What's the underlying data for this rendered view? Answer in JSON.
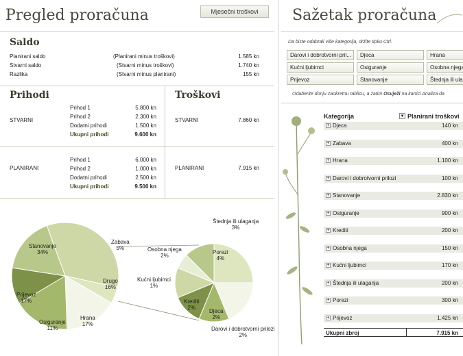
{
  "left": {
    "title": "Pregled proračuna",
    "button_label": "Mjesečni troškovi",
    "saldo": {
      "title": "Saldo",
      "rows": [
        {
          "label": "Planirani saldo",
          "desc": "(Planirani minus troškovi)",
          "value": "1.585 kn"
        },
        {
          "label": "Stvarni saldo",
          "desc": "(Stvarni minus troškovi)",
          "value": "1.740 kn"
        },
        {
          "label": "Razlika",
          "desc": "(Stvarni minus planirani)",
          "value": "155 kn"
        }
      ]
    },
    "prihodi": {
      "title": "Prihodi",
      "stvarni_label": "STVARNI",
      "stvarni_rows": [
        {
          "label": "Prihod 1",
          "value": "5.800 kn"
        },
        {
          "label": "Prihod 2",
          "value": "2.300 kn"
        },
        {
          "label": "Dodatni prihodi",
          "value": "1.500 kn"
        },
        {
          "label": "Ukupni prihodi",
          "value": "9.600 kn"
        }
      ],
      "planirani_label": "PLANIRANI",
      "planirani_rows": [
        {
          "label": "Prihod 1",
          "value": "6.000 kn"
        },
        {
          "label": "Prihod 2",
          "value": "1.000 kn"
        },
        {
          "label": "Dodatni prihodi",
          "value": "2.500 kn"
        },
        {
          "label": "Ukupni prihodi",
          "value": "9.500 kn"
        }
      ]
    },
    "troskovi": {
      "title": "Troškovi",
      "stvarni_label": "STVARNI",
      "stvarni_value": "7.860 kn",
      "planirani_label": "PLANIRANI",
      "planirani_value": "7.915 kn"
    }
  },
  "chart_data": {
    "type": "pie",
    "main": [
      {
        "name": "Stanovanje",
        "value": 34
      },
      {
        "name": "Zabava",
        "value": 5
      },
      {
        "name": "Drugo",
        "value": 16
      },
      {
        "name": "Hrana",
        "value": 17
      },
      {
        "name": "Osiguranje",
        "value": 11
      },
      {
        "name": "Prijevoz",
        "value": 17
      }
    ],
    "secondary": [
      {
        "name": "Porezi",
        "value": 4
      },
      {
        "name": "Štednja ili ulaganja",
        "value": 3
      },
      {
        "name": "Darovi i dobrotvorni prilozi",
        "value": 2
      },
      {
        "name": "Djeca",
        "value": 2
      },
      {
        "name": "Krediti",
        "value": 2
      },
      {
        "name": "Kućni ljubimci",
        "value": 1
      },
      {
        "name": "Osobna njega",
        "value": 2
      }
    ],
    "colors": [
      "#cdd8a6",
      "#dde6bf",
      "#e8eed5",
      "#a3b86a",
      "#7d9148",
      "#b8c88a",
      "#f2f5e8"
    ]
  },
  "right": {
    "title": "Sažetak proračuna",
    "hint": "Da biste odabrali više kategorija, držite tipku Ctrl.",
    "slicers": [
      "Darovi i dobrotvorni pril...",
      "Djeca",
      "Hrana",
      "Kućni ljubimci",
      "Osiguranje",
      "Osobna njega",
      "Prijevoz",
      "Stanovanje",
      "Štednja ili ulag..."
    ],
    "note_prefix": "Odaberite donju zaokretnu tablicu, a zatim",
    "note_bold": "Osvježi",
    "note_suffix": "na kartici Analiza da",
    "col_category": "Kategorija",
    "col_planned": "Planirani troškovi",
    "rows": [
      {
        "label": "Djeca",
        "value": "140 kn"
      },
      {
        "label": "Zabava",
        "value": "400 kn"
      },
      {
        "label": "Hrana",
        "value": "1.100 kn"
      },
      {
        "label": "Darovi i dobrotvorni prilozi",
        "value": "100 kn"
      },
      {
        "label": "Stanovanje",
        "value": "2.830 kn"
      },
      {
        "label": "Osiguranje",
        "value": "900 kn"
      },
      {
        "label": "Krediti",
        "value": "200 kn"
      },
      {
        "label": "Osobna njega",
        "value": "150 kn"
      },
      {
        "label": "Kućni ljubimci",
        "value": "170 kn"
      },
      {
        "label": "Štednja ili ulaganja",
        "value": "200 kn"
      },
      {
        "label": "Porezi",
        "value": "300 kn"
      },
      {
        "label": "Prijevoz",
        "value": "1.425 kn"
      }
    ],
    "total_label": "Ukupni zbroj",
    "total_value": "7.915 kn"
  }
}
